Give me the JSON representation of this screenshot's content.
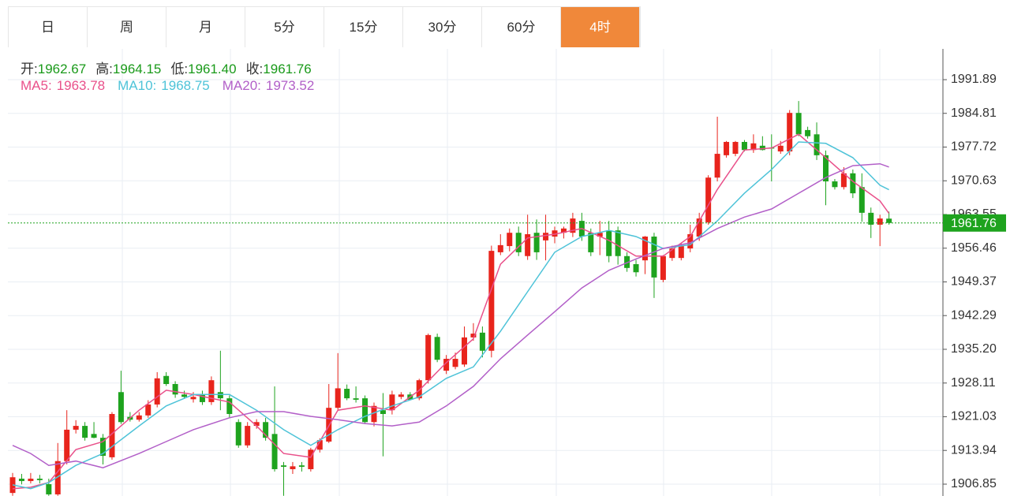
{
  "tabs": {
    "items": [
      "日",
      "周",
      "月",
      "5分",
      "15分",
      "30分",
      "60分",
      "4时"
    ],
    "active": 7
  },
  "ohlc_header": [
    {
      "label": "开:",
      "value": "1962.67"
    },
    {
      "label": "高:",
      "value": "1964.15"
    },
    {
      "label": "低:",
      "value": "1961.40"
    },
    {
      "label": "收:",
      "value": "1961.76"
    }
  ],
  "chart_data": {
    "type": "candlestick",
    "up_color": "#e8241c",
    "down_color": "#1ea31e",
    "ylim": [
      1904.36,
      1998.36
    ],
    "yticks": [
      1906.85,
      1913.94,
      1921.03,
      1928.11,
      {
        "value": 1935.2,
        "label": "1935.20"
      },
      1942.29,
      1949.37,
      1956.46,
      1963.55,
      1970.63,
      1977.72,
      1984.81,
      1991.89
    ],
    "grid": true,
    "last_price": 1961.76,
    "open": [
      1905.0,
      1908.0,
      1907.5,
      1908.0,
      1906.85,
      1904.7,
      1911.7,
      1918.3,
      1919.1,
      1917.4,
      1916.6,
      1912.5,
      1926.2,
      1921.0,
      1920.4,
      1921.3,
      1923.6,
      1929.6,
      1927.9,
      1925.7,
      1924.7,
      1925.7,
      1924.1,
      1926.2,
      1924.9,
      1919.9,
      1915.0,
      1919.1,
      1919.9,
      1917.4,
      1910.8,
      1910.0,
      1910.8,
      1910.0,
      1914.1,
      1915.8,
      1922.9,
      1926.9,
      1924.9,
      1924.9,
      1919.9,
      1922.4,
      1922.4,
      1925.2,
      1925.7,
      1924.9,
      1928.7,
      1937.8,
      1930.7,
      1931.5,
      1932.0,
      1937.7,
      1938.7,
      1934.9,
      1955.6,
      1956.9,
      1959.7,
      1954.8,
      1959.7,
      1958.1,
      1958.9,
      1959.7,
      1959.7,
      1962.2,
      1959.7,
      1958.9,
      1960.2,
      1960.2,
      1954.8,
      1953.1,
      1953.9,
      1958.9,
      1949.8,
      1954.4,
      1954.4,
      1956.4,
      1958.9,
      1961.9,
      1971.3,
      1976.0,
      1976.3,
      1978.8,
      1977.1,
      1978.0,
      1977.6,
      1976.8,
      1976.8,
      1984.9,
      1981.3,
      1980.4,
      1976.0,
      1970.5,
      1969.3,
      1972.2,
      1969.3,
      1963.9,
      1961.4,
      1962.67
    ],
    "high": [
      1909.2,
      1909.0,
      1909.2,
      1908.8,
      1908.0,
      1915.5,
      1922.4,
      1920.3,
      1919.9,
      1919.9,
      1917.4,
      1922.0,
      1930.7,
      1922.0,
      1922.0,
      1924.5,
      1930.4,
      1930.4,
      1928.5,
      1926.5,
      1926.2,
      1926.5,
      1929.5,
      1934.9,
      1925.5,
      1920.5,
      1919.9,
      1920.5,
      1920.8,
      1927.4,
      1911.5,
      1911.5,
      1911.5,
      1914.5,
      1916.5,
      1927.9,
      1934.4,
      1927.8,
      1927.4,
      1925.5,
      1924.0,
      1926.0,
      1926.5,
      1926.2,
      1926.2,
      1929.0,
      1938.5,
      1938.5,
      1934.0,
      1934.5,
      1940.0,
      1940.7,
      1940.0,
      1957.0,
      1959.4,
      1960.6,
      1961.0,
      1963.5,
      1962.5,
      1963.5,
      1961.0,
      1961.0,
      1963.9,
      1963.9,
      1960.6,
      1962.2,
      1962.2,
      1961.0,
      1955.6,
      1954.0,
      1959.0,
      1959.7,
      1955.0,
      1957.0,
      1957.5,
      1961.4,
      1963.9,
      1971.8,
      1984.1,
      1979.0,
      1979.0,
      1979.2,
      1980.4,
      1980.0,
      1980.4,
      1979.0,
      1985.5,
      1987.4,
      1982.0,
      1982.9,
      1977.0,
      1971.0,
      1973.5,
      1973.0,
      1972.2,
      1965.0,
      1963.5,
      1964.15
    ],
    "low": [
      1904.4,
      1906.8,
      1907.0,
      1907.0,
      1904.4,
      1904.4,
      1911.0,
      1917.5,
      1916.0,
      1916.5,
      1911.0,
      1912.0,
      1919.5,
      1920.0,
      1920.0,
      1920.8,
      1923.0,
      1927.5,
      1925.0,
      1924.8,
      1924.0,
      1923.5,
      1923.5,
      1922.4,
      1920.8,
      1914.5,
      1914.5,
      1918.5,
      1916.0,
      1909.5,
      1904.4,
      1909.0,
      1909.5,
      1909.5,
      1913.5,
      1915.5,
      1922.5,
      1924.5,
      1924.0,
      1919.5,
      1919.0,
      1912.7,
      1921.5,
      1924.7,
      1924.5,
      1924.5,
      1928.0,
      1932.5,
      1930.0,
      1931.0,
      1931.5,
      1937.0,
      1933.5,
      1933.5,
      1955.0,
      1955.8,
      1954.8,
      1954.0,
      1954.0,
      1953.9,
      1957.5,
      1958.5,
      1958.8,
      1958.0,
      1954.8,
      1955.0,
      1953.5,
      1953.0,
      1951.5,
      1950.5,
      1951.0,
      1946.0,
      1949.3,
      1953.8,
      1953.9,
      1955.6,
      1958.0,
      1961.4,
      1970.5,
      1975.5,
      1975.8,
      1976.8,
      1976.5,
      1977.0,
      1970.5,
      1976.3,
      1976.0,
      1980.0,
      1979.5,
      1975.0,
      1965.5,
      1968.8,
      1968.8,
      1967.0,
      1962.0,
      1958.6,
      1956.9,
      1961.4
    ],
    "close": [
      1908.3,
      1907.5,
      1908.0,
      1907.7,
      1904.7,
      1911.7,
      1918.3,
      1919.1,
      1916.6,
      1916.6,
      1912.8,
      1921.6,
      1919.9,
      1920.4,
      1921.3,
      1923.6,
      1929.1,
      1927.9,
      1925.7,
      1925.2,
      1925.2,
      1924.1,
      1928.7,
      1924.9,
      1921.6,
      1915.0,
      1919.1,
      1919.9,
      1916.6,
      1910.0,
      1910.5,
      1910.6,
      1910.5,
      1914.1,
      1916.1,
      1922.9,
      1927.0,
      1924.9,
      1924.6,
      1919.9,
      1923.3,
      1921.6,
      1925.7,
      1925.7,
      1924.6,
      1928.7,
      1938.2,
      1933.0,
      1933.2,
      1933.2,
      1937.7,
      1938.5,
      1934.9,
      1955.9,
      1957.1,
      1959.7,
      1955.6,
      1959.4,
      1955.6,
      1959.7,
      1960.2,
      1960.6,
      1962.7,
      1958.9,
      1955.6,
      1959.7,
      1954.8,
      1954.8,
      1952.3,
      1951.4,
      1958.9,
      1950.3,
      1954.8,
      1956.4,
      1956.9,
      1959.4,
      1962.7,
      1971.3,
      1976.3,
      1978.8,
      1978.8,
      1977.1,
      1978.5,
      1977.1,
      1977.4,
      1978.0,
      1984.9,
      1980.4,
      1980.0,
      1976.0,
      1970.5,
      1969.3,
      1972.2,
      1968.0,
      1963.9,
      1961.4,
      1962.7,
      1961.76
    ],
    "series": [
      {
        "name": "MA5:",
        "color": "#e9508a",
        "last": 1963.78,
        "x": [
          0,
          2,
          4,
          7,
          10,
          14,
          17,
          20,
          24,
          27,
          30,
          33,
          36,
          39,
          42,
          45,
          48,
          51,
          54,
          57,
          60,
          63,
          66,
          69,
          72,
          75,
          78,
          81,
          84,
          87,
          90,
          93,
          96,
          97
        ],
        "values": [
          1905.9,
          1906.2,
          1907.2,
          1914.1,
          1915.8,
          1922.4,
          1926.6,
          1925.7,
          1924.1,
          1919.1,
          1913.3,
          1912.5,
          1922.4,
          1923.3,
          1922.4,
          1926.6,
          1932.4,
          1937.4,
          1953.1,
          1958.6,
          1959.4,
          1960.6,
          1958.1,
          1954.8,
          1954.8,
          1958.9,
          1968.8,
          1977.1,
          1977.5,
          1980.4,
          1975.5,
          1970.5,
          1966.4,
          1963.78
        ]
      },
      {
        "name": "MA10:",
        "color": "#4ec3d8",
        "last": 1968.75,
        "x": [
          0,
          2,
          4,
          7,
          10,
          14,
          17,
          20,
          24,
          27,
          30,
          33,
          36,
          39,
          42,
          45,
          48,
          51,
          54,
          57,
          60,
          63,
          66,
          69,
          72,
          75,
          78,
          81,
          84,
          87,
          90,
          93,
          96,
          97
        ],
        "values": [
          1906.7,
          1905.9,
          1907.2,
          1910.8,
          1913.3,
          1919.1,
          1923.3,
          1925.7,
          1925.7,
          1922.4,
          1918.3,
          1915.0,
          1918.3,
          1921.1,
          1923.3,
          1925.2,
          1929.1,
          1931.5,
          1939.0,
          1947.3,
          1955.6,
          1958.9,
          1960.2,
          1958.9,
          1956.4,
          1957.2,
          1962.2,
          1968.0,
          1973.0,
          1978.8,
          1978.5,
          1975.5,
          1969.7,
          1968.75
        ]
      },
      {
        "name": "MA20:",
        "color": "#b25fc8",
        "last": 1973.52,
        "x": [
          0,
          2,
          4,
          7,
          10,
          14,
          17,
          20,
          24,
          27,
          30,
          33,
          36,
          39,
          42,
          45,
          48,
          51,
          54,
          57,
          60,
          63,
          66,
          69,
          72,
          75,
          78,
          81,
          84,
          87,
          90,
          93,
          96,
          97
        ],
        "values": [
          1915.0,
          1913.3,
          1910.8,
          1911.7,
          1910.3,
          1913.3,
          1915.8,
          1918.3,
          1920.8,
          1922.1,
          1922.1,
          1921.1,
          1920.4,
          1919.6,
          1919.1,
          1919.9,
          1923.3,
          1927.4,
          1933.2,
          1938.2,
          1943.1,
          1948.1,
          1951.8,
          1954.2,
          1956.4,
          1957.6,
          1960.6,
          1963.0,
          1964.7,
          1968.0,
          1971.3,
          1973.8,
          1974.2,
          1973.52
        ]
      }
    ]
  }
}
